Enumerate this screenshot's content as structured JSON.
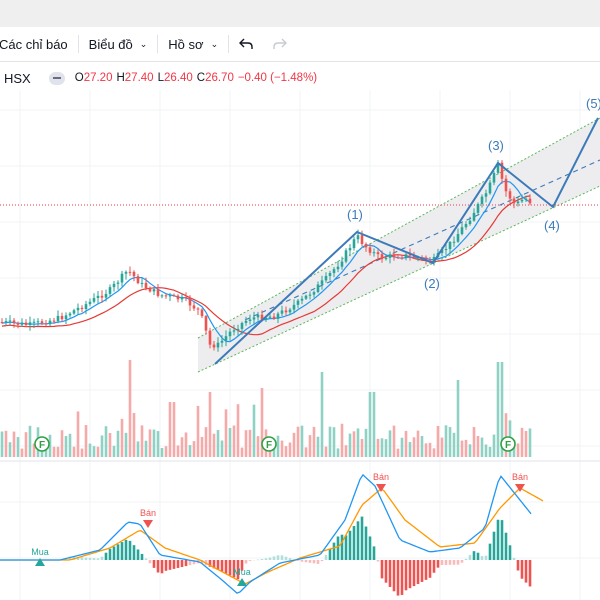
{
  "toolbar": {
    "indicators_label": "Các chỉ báo",
    "chart_label": "Biểu đồ",
    "profile_label": "Hồ sơ",
    "undo_icon": "undo-icon",
    "redo_icon": "redo-icon"
  },
  "legend": {
    "symbol": "HSX",
    "open_key": "O",
    "open": "27.20",
    "high_key": "H",
    "high": "27.40",
    "low_key": "L",
    "low": "26.40",
    "close_key": "C",
    "close": "26.70",
    "change": "−0.40 (−1.48%)"
  },
  "colors": {
    "up": "#26a69a",
    "down": "#ef5350",
    "wave": "#3d7ab8",
    "channel": "#2ca02c",
    "price_line": "#f23645",
    "ma_fast": "#2196f3",
    "ma_slow": "#e53935",
    "macd": "#2196f3",
    "signal": "#ff9800"
  },
  "wave_labels": [
    "(1)",
    "(2)",
    "(3)",
    "(4)",
    "(5)"
  ],
  "signals": {
    "buy_label": "Mua",
    "sell_label": "Bán",
    "f_label": "F"
  }
}
